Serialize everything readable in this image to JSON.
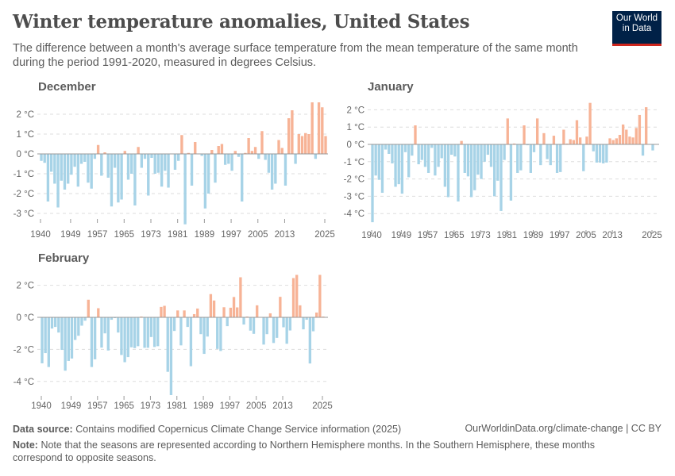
{
  "header": {
    "title": "Winter temperature anomalies, United States",
    "subtitle": "The difference between a month's average surface temperature from the mean temperature of the same month during the period 1991-2020, measured in degrees Celsius.",
    "logo_line1": "Our World",
    "logo_line2": "in Data",
    "logo_colors": {
      "background": "#002147",
      "accent": "#ce261e"
    }
  },
  "colors": {
    "positive": "#f7b396",
    "negative": "#a7d3e7",
    "zero_line": "#9a9a9a",
    "grid": "#dddddd"
  },
  "chart_data": [
    {
      "type": "bar",
      "title": "December",
      "x_start": 1940,
      "x_end": 2025,
      "xticks": [
        "1940",
        "1949",
        "1957",
        "1965",
        "1973",
        "1981",
        "1989",
        "1997",
        "2005",
        "2013",
        "2025"
      ],
      "yticks": [
        {
          "value": 2,
          "label": "2 °C"
        },
        {
          "value": 1,
          "label": "1 °C"
        },
        {
          "value": 0,
          "label": "0 °C"
        },
        {
          "value": -1,
          "label": "-1 °C"
        },
        {
          "value": -2,
          "label": "-2 °C"
        },
        {
          "value": -3,
          "label": "-3 °C"
        }
      ],
      "ylim": [
        -3.6,
        2.6
      ],
      "grid": true,
      "values": [
        -0.35,
        -0.45,
        -2.4,
        -0.9,
        -1.5,
        -2.7,
        -1.35,
        -1.8,
        -1.5,
        -1.05,
        -0.65,
        -1.65,
        -0.5,
        -0.4,
        -1.45,
        -1.75,
        -0.25,
        0.45,
        -1.1,
        0.08,
        -1.2,
        -2.65,
        -0.7,
        -2.45,
        -2.3,
        0.15,
        -1.3,
        -1.0,
        -2.6,
        0.35,
        -0.7,
        -0.25,
        -2.1,
        -0.2,
        -1.0,
        -0.95,
        -1.65,
        -0.85,
        -1.7,
        0,
        -0.8,
        -0.35,
        0.95,
        -3.55,
        0.05,
        -1.6,
        0.6,
        0,
        -0.1,
        -2.75,
        -2.0,
        0.2,
        -1.45,
        0.4,
        0.5,
        -0.55,
        -0.5,
        -0.85,
        0.15,
        -0.15,
        -2.4,
        0.05,
        0.8,
        0.15,
        0.35,
        -0.25,
        1.15,
        -0.3,
        -0.95,
        -1.8,
        -1.5,
        0.7,
        0.3,
        -1.6,
        1.8,
        2.2,
        -0.5,
        1.0,
        0.9,
        1.05,
        1.0,
        2.6,
        -0.25,
        2.6,
        2.35,
        0.9
      ]
    },
    {
      "type": "bar",
      "title": "January",
      "x_start": 1940,
      "x_end": 2025,
      "xticks": [
        "1940",
        "1949",
        "1957",
        "1965",
        "1973",
        "1981",
        "1989",
        "1997",
        "2005",
        "2013",
        "2025"
      ],
      "yticks": [
        {
          "value": 2,
          "label": "2 °C"
        },
        {
          "value": 1,
          "label": "1 °C"
        },
        {
          "value": 0,
          "label": "0 °C"
        },
        {
          "value": -1,
          "label": "-1 °C"
        },
        {
          "value": -2,
          "label": "-2 °C"
        },
        {
          "value": -3,
          "label": "-3 °C"
        },
        {
          "value": -4,
          "label": "-4 °C"
        }
      ],
      "ylim": [
        -4.6,
        2.5
      ],
      "grid": true,
      "values": [
        -4.5,
        -1.8,
        -2.05,
        -2.8,
        -0.3,
        -0.55,
        -1.1,
        -2.45,
        -2.3,
        -2.85,
        -0.45,
        -1.9,
        -0.65,
        1.1,
        -1.15,
        -0.9,
        -1.3,
        -1.65,
        -0.2,
        -1.8,
        -1.3,
        -0.8,
        -2.45,
        -3.05,
        -0.6,
        -0.7,
        -3.3,
        0.2,
        -1.65,
        -1.85,
        -3.05,
        -2.65,
        -1.75,
        -2.0,
        -1.0,
        -0.6,
        -1.3,
        -3.0,
        -2.1,
        -3.85,
        -0.9,
        1.5,
        -3.25,
        0.05,
        -1.65,
        -1.5,
        1.1,
        -0.05,
        -1.65,
        -0.45,
        1.5,
        -1.2,
        0.65,
        -0.85,
        -1.2,
        0.5,
        -1.65,
        -1.6,
        0.85,
        0.05,
        0.3,
        0.25,
        1.4,
        0.4,
        -1.55,
        0.45,
        2.4,
        -0.4,
        -1.05,
        -1.05,
        -1.1,
        -1.05,
        0.35,
        0.25,
        0.35,
        0.55,
        1.15,
        0.85,
        0.45,
        0.4,
        0.95,
        1.7,
        -0.65,
        2.15,
        0,
        -0.35
      ]
    },
    {
      "type": "bar",
      "title": "February",
      "x_start": 1940,
      "x_end": 2025,
      "xticks": [
        "1940",
        "1949",
        "1957",
        "1965",
        "1973",
        "1981",
        "1989",
        "1997",
        "2005",
        "2013",
        "2025"
      ],
      "yticks": [
        {
          "value": 2,
          "label": "2 °C"
        },
        {
          "value": 0,
          "label": "0 °C"
        },
        {
          "value": -2,
          "label": "-2 °C"
        },
        {
          "value": -4,
          "label": "-4 °C"
        }
      ],
      "ylim": [
        -4.9,
        2.7
      ],
      "grid": true,
      "values": [
        -2.87,
        -2.23,
        -3.1,
        -0.7,
        -0.6,
        -0.95,
        -2.03,
        -3.33,
        -2.72,
        -2.57,
        -1.41,
        -1.15,
        -0.52,
        -0.21,
        1.1,
        -3.1,
        -2.62,
        0.57,
        -1.89,
        -1.0,
        -2.07,
        -0.15,
        -0.05,
        -0.95,
        -2.35,
        -2.8,
        -2.48,
        -1.87,
        -1.92,
        -1.8,
        0.05,
        -1.9,
        -1.9,
        -1.23,
        -1.85,
        -1.8,
        0.65,
        0.72,
        -3.4,
        -4.85,
        -0.85,
        0.43,
        -1.75,
        0.43,
        -0.6,
        -3.05,
        0.2,
        0.55,
        -1.05,
        -2.28,
        -1.2,
        1.45,
        1.05,
        -1.97,
        -2.1,
        0.63,
        -0.55,
        0.6,
        1.27,
        0.62,
        2.5,
        -0.45,
        0.05,
        -0.83,
        -1.03,
        0.75,
        0,
        -1.7,
        -1.05,
        0.25,
        -1.6,
        -1.28,
        1.28,
        -0.62,
        -1.65,
        -0.82,
        2.45,
        2.65,
        0.75,
        -0.75,
        -0.15,
        -2.88,
        -0.87,
        0.3,
        2.65,
        0.05
      ]
    }
  ],
  "footer": {
    "source_label": "Data source:",
    "source_text": "Contains modified Copernicus Climate Change Service information (2025)",
    "link_text": "OurWorldinData.org/climate-change | CC BY",
    "note_label": "Note:",
    "note_text": "Note that the seasons are represented according to Northern Hemisphere months. In the Southern Hemisphere, these months correspond to opposite seasons."
  }
}
